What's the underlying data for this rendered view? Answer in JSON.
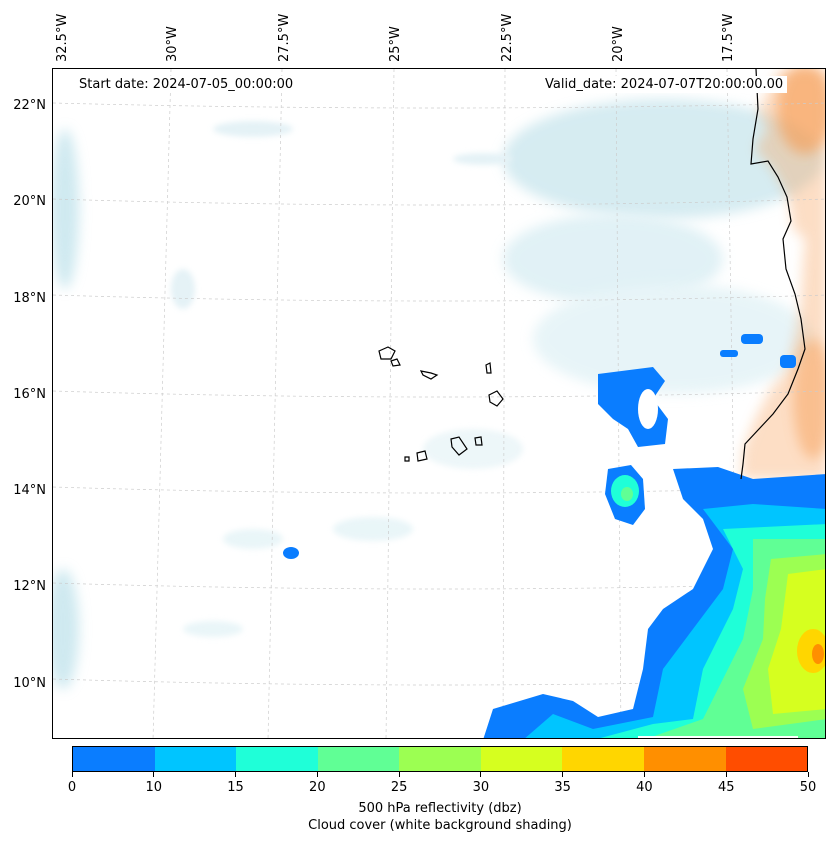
{
  "map": {
    "start_date": "Start date: 2024-07-05_00:00:00",
    "valid_date": "Valid_date: 2024-07-07T20:00:00.00",
    "lon_labels": [
      "32.5°W",
      "30°W",
      "27.5°W",
      "25°W",
      "22.5°W",
      "20°W",
      "17.5°W"
    ],
    "lat_labels": [
      "22°N",
      "20°N",
      "18°N",
      "16°N",
      "14°N",
      "12°N",
      "10°N"
    ]
  },
  "colorbar": {
    "ticks": [
      "0",
      "10",
      "15",
      "20",
      "25",
      "30",
      "35",
      "40",
      "45",
      "50"
    ],
    "colors": [
      "#0a7dff",
      "#00c5ff",
      "#1fffd8",
      "#60ff95",
      "#9cff52",
      "#d6ff1f",
      "#ffd600",
      "#ff8f00",
      "#ff4d00"
    ],
    "label_line1": "500 hPa reflectivity (dbz)",
    "label_line2": "Cloud cover (white background shading)"
  },
  "colors": {
    "cloud": "#a8d8e4",
    "land_shading": "#f8a05a"
  }
}
